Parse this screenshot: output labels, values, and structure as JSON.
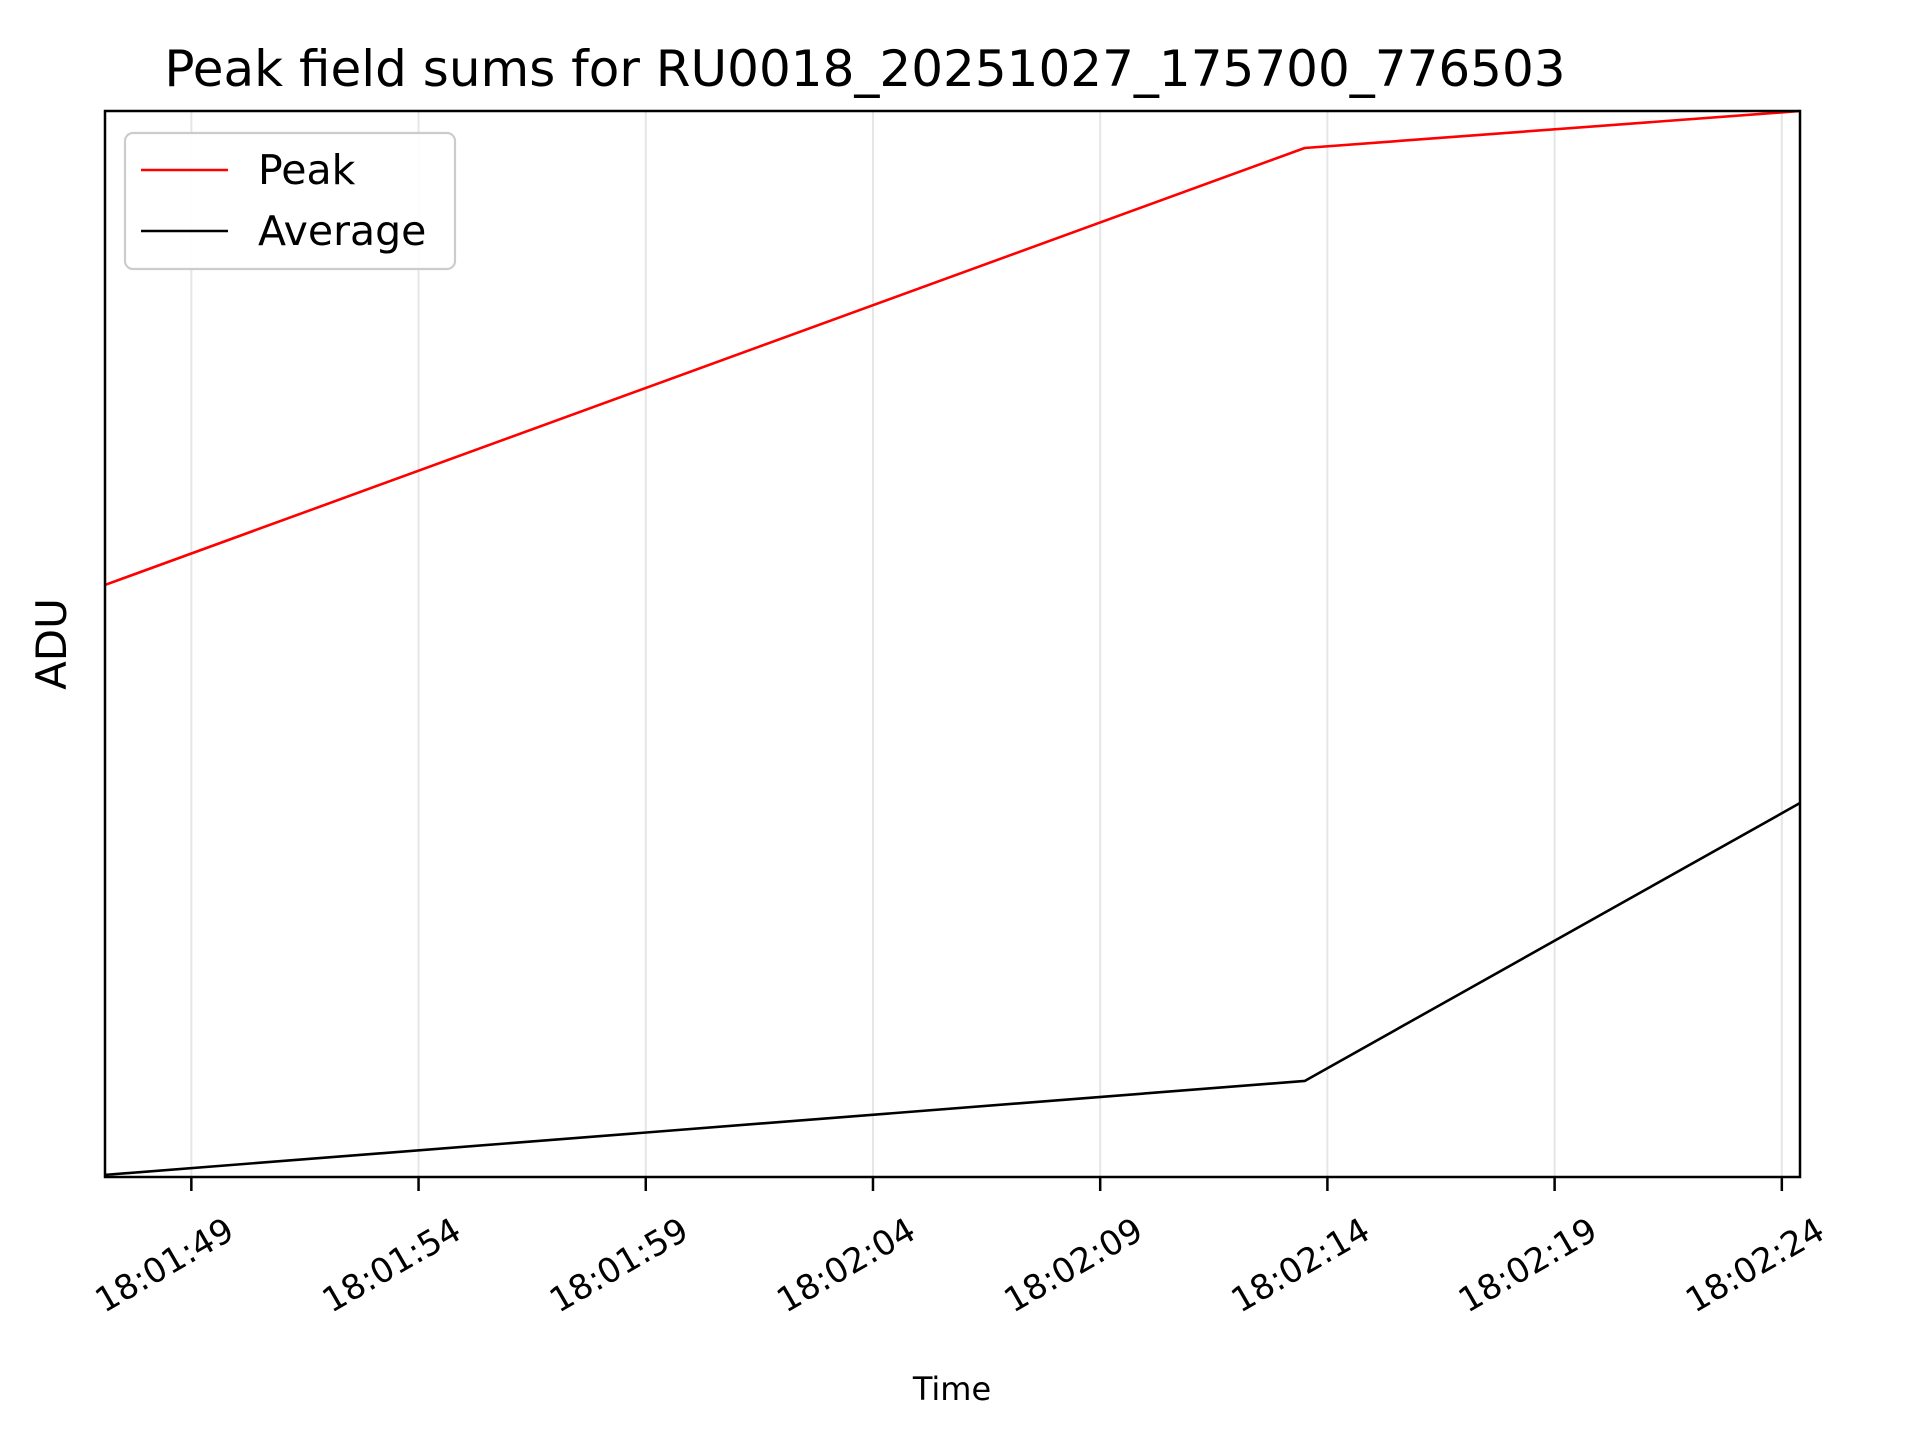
{
  "chart_data": {
    "type": "line",
    "title": "Peak field sums for RU0018_20251027_175700_776503",
    "xlabel": "Time",
    "ylabel": "ADU",
    "x_tick_labels": [
      "18:01:49",
      "18:01:54",
      "18:01:59",
      "18:02:04",
      "18:02:09",
      "18:02:14",
      "18:02:19",
      "18:02:24"
    ],
    "x_range": [
      "18:01:47.1",
      "18:02:24.4"
    ],
    "y_axis_note": "no y tick labels visible; values normalized 0-1 of plot height",
    "grid": "vertical gridlines only at x ticks",
    "legend": {
      "position": "upper-left",
      "entries": [
        "Peak",
        "Average"
      ]
    },
    "series": [
      {
        "name": "Peak",
        "color": "#ff0000",
        "points": [
          {
            "t": "18:01:47.1",
            "y": 0.5554
          },
          {
            "t": "18:02:13.5",
            "y": 0.9653
          },
          {
            "t": "18:02:24.4",
            "y": 1.0
          }
        ]
      },
      {
        "name": "Average",
        "color": "#000000",
        "points": [
          {
            "t": "18:01:47.1",
            "y": 0.002
          },
          {
            "t": "18:02:13.5",
            "y": 0.0901
          },
          {
            "t": "18:02:24.4",
            "y": 0.3508
          }
        ]
      }
    ],
    "colors": {
      "background": "#ffffff",
      "frame": "#000000",
      "gridline": "#e6e6e6",
      "legend_border": "#cccccc"
    }
  }
}
